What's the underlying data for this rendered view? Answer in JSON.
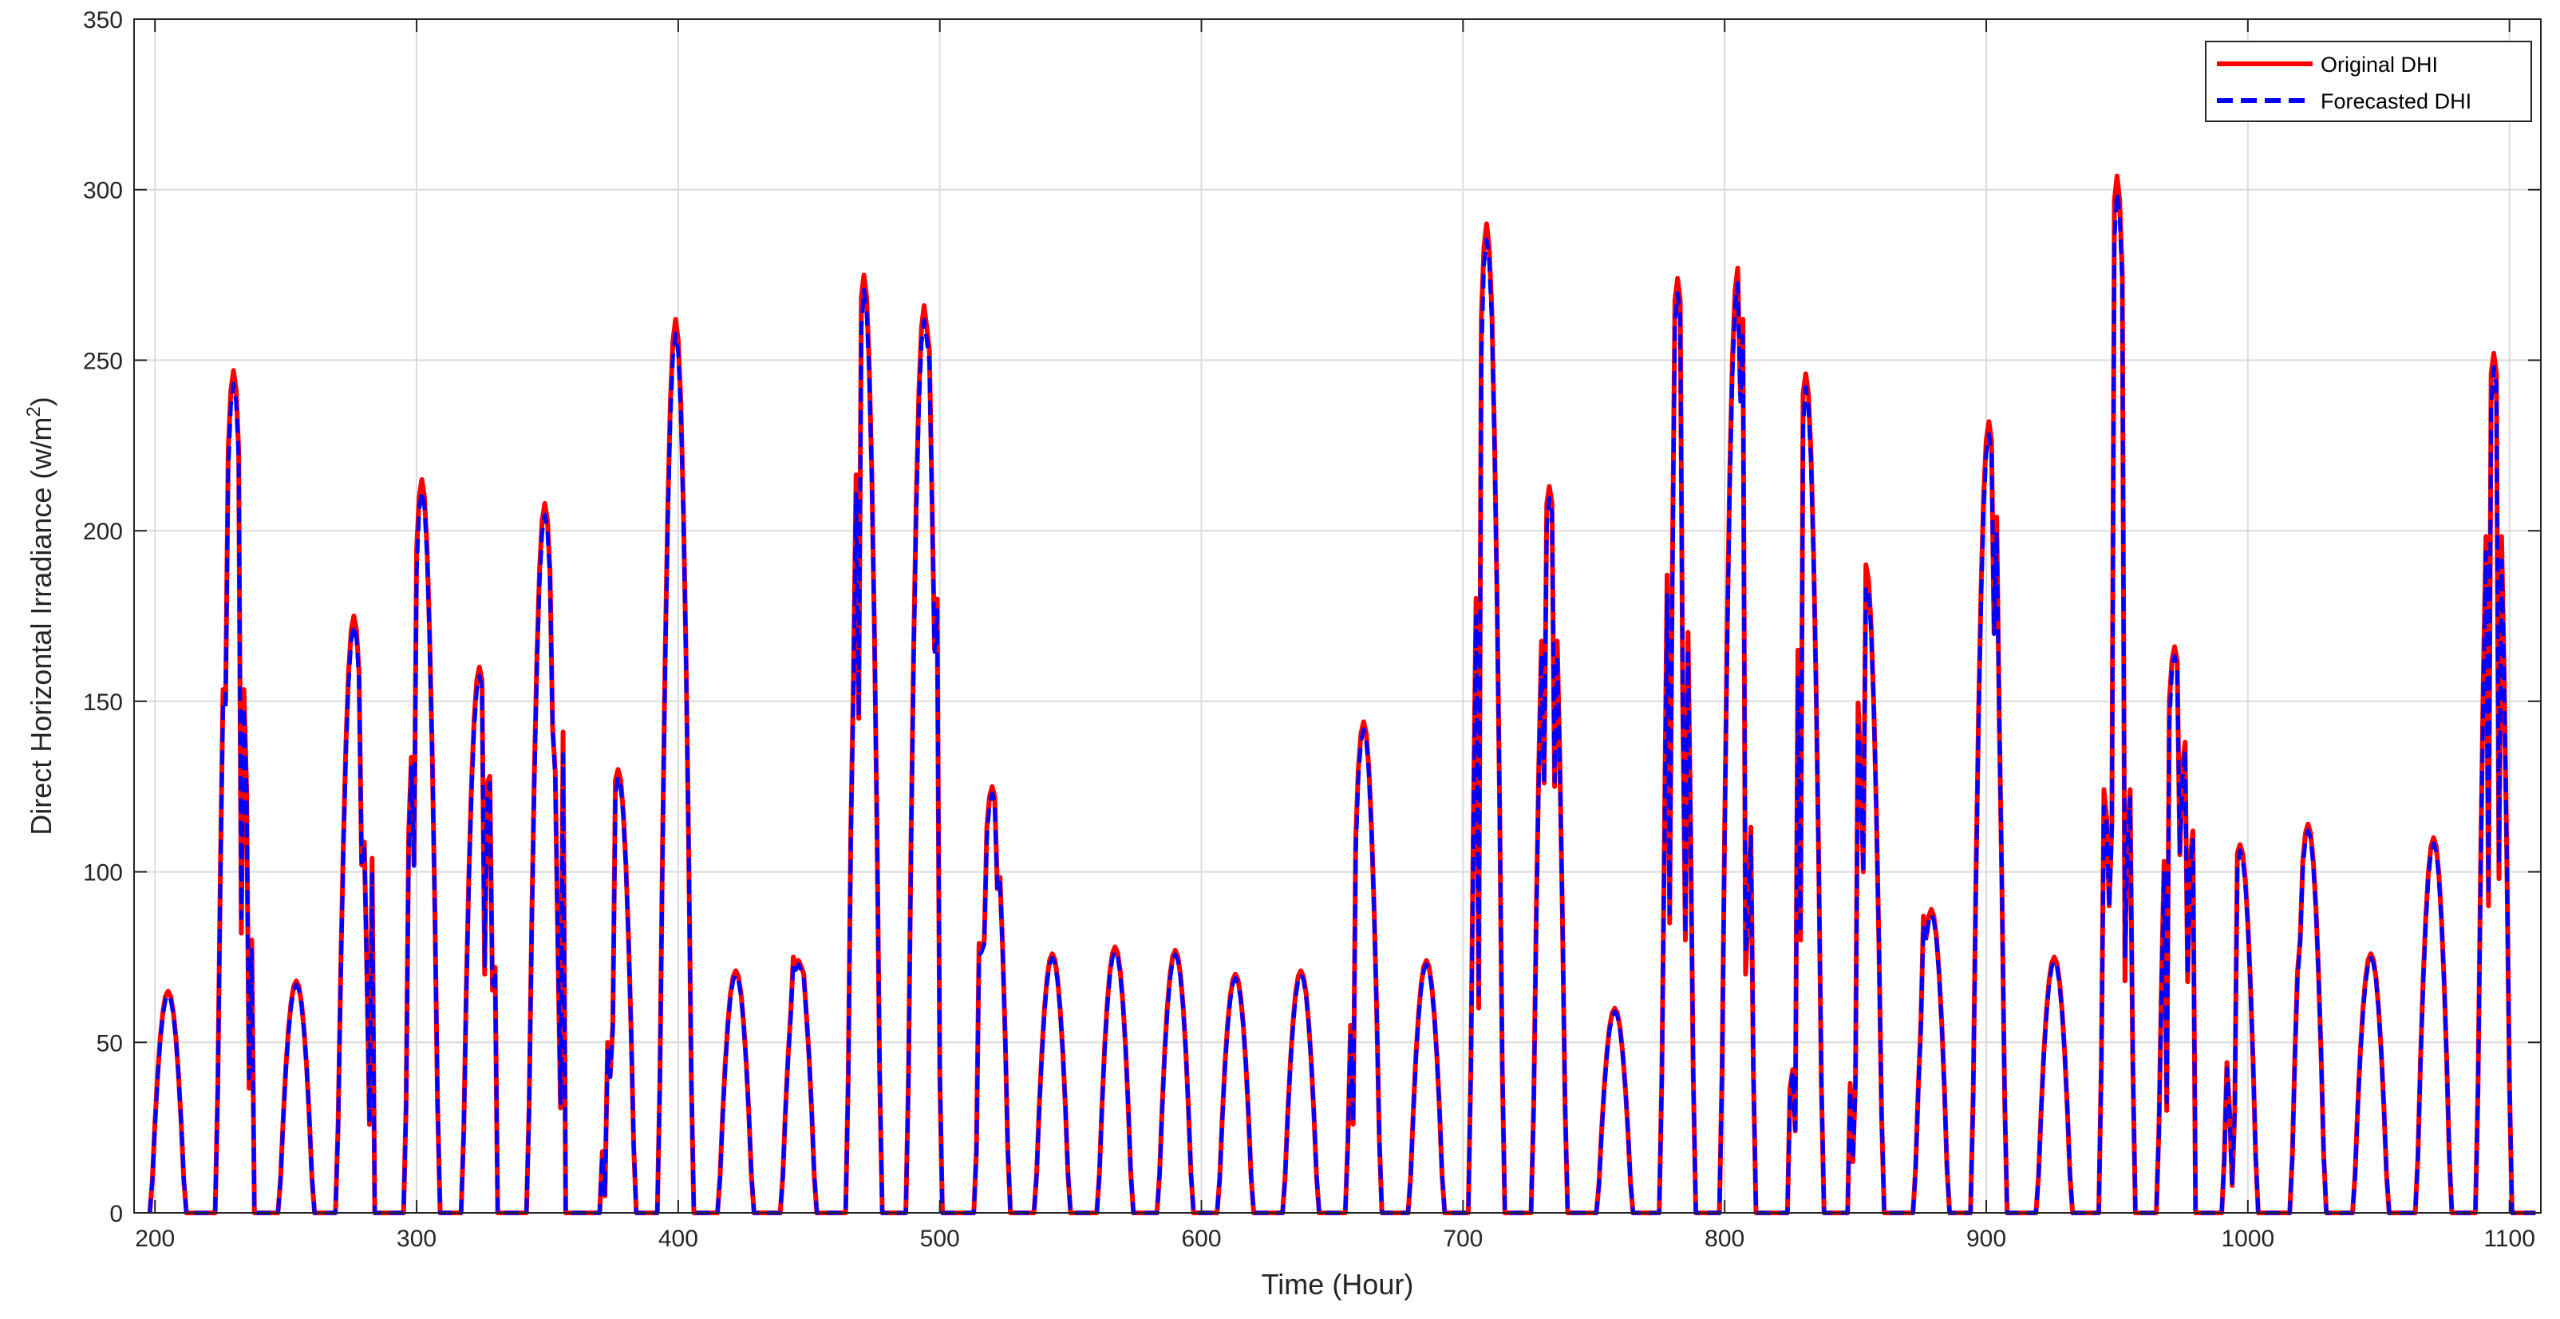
{
  "chart_data": {
    "type": "line",
    "title": "",
    "xlabel": "Time (Hour)",
    "ylabel_main": "Direct Horizontal Irradiance (w/m",
    "ylabel_sup": "2",
    "ylabel_tail": ")",
    "xlim": [
      192,
      1112
    ],
    "ylim": [
      0,
      350
    ],
    "xticks": [
      200,
      300,
      400,
      500,
      600,
      700,
      800,
      900,
      1000,
      1100
    ],
    "yticks": [
      0,
      50,
      100,
      150,
      200,
      250,
      300,
      350
    ],
    "grid": true,
    "legend_position": "top-right",
    "colors": {
      "original": "#ff0000",
      "forecast": "#0000ff",
      "grid": "#dcdcdc",
      "axis": "#262626"
    },
    "series": [
      {
        "name": "Original DHI",
        "style": "solid"
      },
      {
        "name": "Forecasted DHI",
        "style": "dashed"
      }
    ],
    "daily_peaks": [
      {
        "c": 205,
        "v": 65
      },
      {
        "c": 230,
        "v": 247,
        "extra": [
          [
            227,
            150
          ],
          [
            233,
            82
          ],
          [
            235,
            124
          ],
          [
            237,
            80
          ]
        ]
      },
      {
        "c": 254,
        "v": 68
      },
      {
        "c": 276,
        "v": 175,
        "extra": [
          [
            279,
            102
          ],
          [
            281,
            70
          ],
          [
            283,
            104
          ]
        ]
      },
      {
        "c": 302,
        "v": 215,
        "extra": [
          [
            297,
            112
          ],
          [
            299,
            102
          ]
        ]
      },
      {
        "c": 324,
        "v": 160,
        "extra": [
          [
            326,
            70
          ],
          [
            328,
            128
          ],
          [
            330,
            72
          ]
        ]
      },
      {
        "c": 349,
        "v": 208,
        "extra": [
          [
            352,
            142
          ],
          [
            354,
            78
          ],
          [
            356,
            141
          ]
        ]
      },
      {
        "c": 377,
        "v": 130,
        "extra": [
          [
            371,
            18
          ],
          [
            372,
            5
          ],
          [
            373,
            50
          ],
          [
            374,
            40
          ],
          [
            375,
            55
          ]
        ]
      },
      {
        "c": 399,
        "v": 262
      },
      {
        "c": 422,
        "v": 71
      },
      {
        "c": 446,
        "v": 74,
        "extra": [
          [
            444,
            75
          ],
          [
            448,
            70
          ]
        ]
      },
      {
        "c": 471,
        "v": 275,
        "extra": [
          [
            467,
            157
          ],
          [
            469,
            145
          ]
        ]
      },
      {
        "c": 494,
        "v": 266,
        "extra": [
          [
            496,
            253
          ],
          [
            499,
            180
          ]
        ]
      },
      {
        "c": 520,
        "v": 125,
        "extra": [
          [
            515,
            79
          ],
          [
            517,
            80
          ],
          [
            522,
            95
          ]
        ]
      },
      {
        "c": 543,
        "v": 76
      },
      {
        "c": 567,
        "v": 78
      },
      {
        "c": 590,
        "v": 77
      },
      {
        "c": 613,
        "v": 70
      },
      {
        "c": 638,
        "v": 71
      },
      {
        "c": 662,
        "v": 144,
        "extra": [
          [
            657,
            55
          ],
          [
            658,
            26
          ],
          [
            659,
            110
          ]
        ]
      },
      {
        "c": 686,
        "v": 74
      },
      {
        "c": 709,
        "v": 290,
        "extra": [
          [
            706,
            60
          ],
          [
            711,
            265
          ]
        ]
      },
      {
        "c": 733,
        "v": 213,
        "extra": [
          [
            731,
            126
          ],
          [
            735,
            125
          ]
        ]
      },
      {
        "c": 758,
        "v": 60
      },
      {
        "c": 782,
        "v": 274,
        "extra": [
          [
            778,
            187
          ],
          [
            779,
            85
          ],
          [
            780,
            188
          ],
          [
            784,
            150
          ],
          [
            785,
            80
          ]
        ]
      },
      {
        "c": 805,
        "v": 277,
        "extra": [
          [
            806,
            240
          ],
          [
            807,
            262
          ],
          [
            808,
            70
          ],
          [
            809,
            87
          ]
        ]
      },
      {
        "c": 831,
        "v": 246,
        "extra": [
          [
            826,
            42
          ],
          [
            827,
            24
          ],
          [
            828,
            165
          ],
          [
            829,
            80
          ]
        ]
      },
      {
        "c": 854,
        "v": 190,
        "extra": [
          [
            848,
            38
          ],
          [
            849,
            15
          ],
          [
            850,
            38
          ],
          [
            852,
            131
          ],
          [
            853,
            100
          ]
        ]
      },
      {
        "c": 879,
        "v": 89,
        "extra": [
          [
            876,
            87
          ]
        ]
      },
      {
        "c": 901,
        "v": 232,
        "extra": [
          [
            903,
            170
          ],
          [
            904,
            204
          ]
        ]
      },
      {
        "c": 926,
        "v": 75
      },
      {
        "c": 950,
        "v": 304,
        "extra": [
          [
            946,
            116
          ],
          [
            947,
            90
          ],
          [
            948,
            114
          ],
          [
            953,
            68
          ],
          [
            954,
            111
          ]
        ]
      },
      {
        "c": 972,
        "v": 166,
        "extra": [
          [
            969,
            30
          ],
          [
            974,
            105
          ],
          [
            976,
            138
          ],
          [
            978,
            104
          ],
          [
            979,
            112
          ]
        ]
      },
      {
        "c": 997,
        "v": 108,
        "extra": [
          [
            993,
            30
          ],
          [
            994,
            8
          ],
          [
            995,
            30
          ]
        ]
      },
      {
        "c": 1023,
        "v": 114,
        "extra": [
          [
            1020,
            80
          ]
        ]
      },
      {
        "c": 1047,
        "v": 76
      },
      {
        "c": 1071,
        "v": 110
      },
      {
        "c": 1094,
        "v": 252,
        "extra": [
          [
            1092,
            90
          ],
          [
            1096,
            98
          ]
        ]
      }
    ]
  }
}
